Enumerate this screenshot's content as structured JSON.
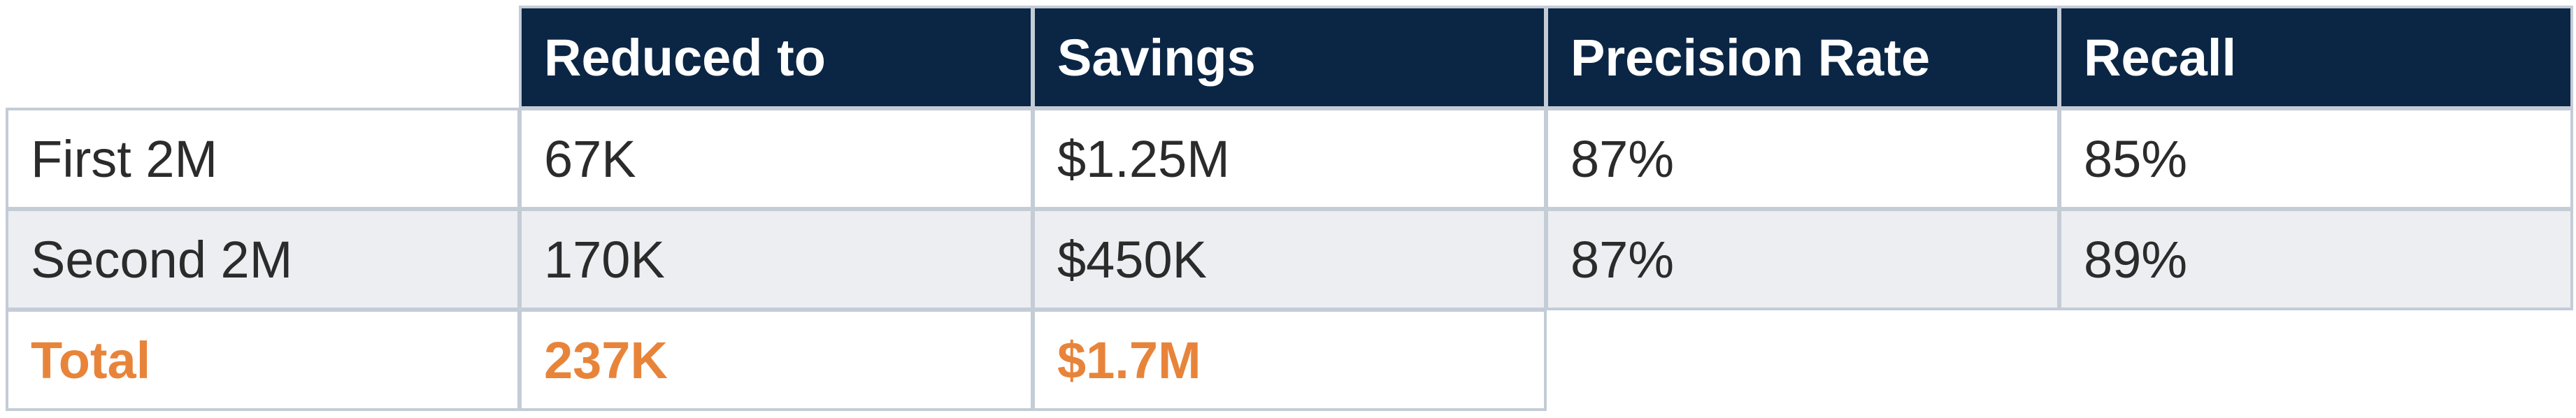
{
  "table": {
    "headers": [
      "Reduced to",
      "Savings",
      "Precision Rate",
      "Recall"
    ],
    "rows": [
      {
        "label": "First 2M",
        "cells": [
          "67K",
          "$1.25M",
          "87%",
          "85%"
        ]
      },
      {
        "label": "Second 2M",
        "cells": [
          "170K",
          "$450K",
          "87%",
          "89%"
        ]
      }
    ],
    "total": {
      "label": "Total",
      "cells": [
        "237K",
        "$1.7M"
      ]
    }
  },
  "colors": {
    "header_bg": "#0b2645",
    "header_text": "#ffffff",
    "row_alt_bg": "#eceef2",
    "total_text": "#e8843a",
    "border": "#c4ccd6"
  }
}
